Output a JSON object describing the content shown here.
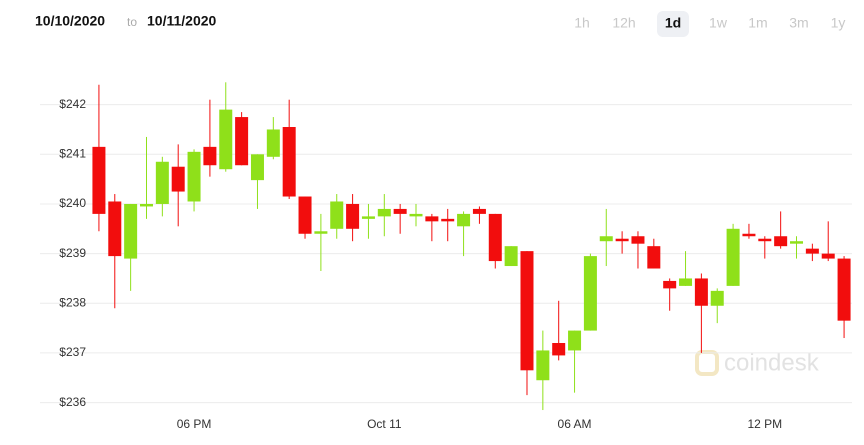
{
  "header": {
    "date_from": "10/10/2020",
    "to": "to",
    "date_to": "10/11/2020"
  },
  "range_buttons": [
    {
      "label": "1h",
      "selected": false
    },
    {
      "label": "12h",
      "selected": false
    },
    {
      "label": "1d",
      "selected": true
    },
    {
      "label": "1w",
      "selected": false
    },
    {
      "label": "1m",
      "selected": false
    },
    {
      "label": "3m",
      "selected": false
    },
    {
      "label": "1y",
      "selected": false
    }
  ],
  "watermark": "coindesk",
  "chart_data": {
    "type": "candlestick",
    "categories": [
      null,
      null,
      null,
      null,
      null,
      null,
      "06 PM",
      null,
      null,
      null,
      null,
      null,
      null,
      null,
      null,
      null,
      null,
      null,
      "Oct 11",
      null,
      null,
      null,
      null,
      null,
      null,
      null,
      null,
      null,
      null,
      null,
      "06 AM",
      null,
      null,
      null,
      null,
      null,
      null,
      null,
      null,
      null,
      null,
      null,
      "12 PM",
      null,
      null,
      null,
      null,
      null
    ],
    "open": [
      241.15,
      240.05,
      238.9,
      239.95,
      240.0,
      240.75,
      240.05,
      241.15,
      240.7,
      241.75,
      240.48,
      240.95,
      241.55,
      240.15,
      239.4,
      239.5,
      240.0,
      239.7,
      239.75,
      239.9,
      239.75,
      239.75,
      239.7,
      239.55,
      239.9,
      239.8,
      238.75,
      239.05,
      236.45,
      237.2,
      237.05,
      237.45,
      239.25,
      239.3,
      239.35,
      239.15,
      238.45,
      238.35,
      238.5,
      237.95,
      238.35,
      239.4,
      239.3,
      239.35,
      239.2,
      239.1,
      239.0,
      238.9
    ],
    "high": [
      242.4,
      240.2,
      240.0,
      241.35,
      240.95,
      241.2,
      241.1,
      242.1,
      242.45,
      241.85,
      241.0,
      241.75,
      242.1,
      240.15,
      239.8,
      240.2,
      240.2,
      240.0,
      240.2,
      240.0,
      240.0,
      239.8,
      239.9,
      239.85,
      239.95,
      239.8,
      239.15,
      239.05,
      237.45,
      238.05,
      237.45,
      239.0,
      239.9,
      239.45,
      239.45,
      239.3,
      238.5,
      239.05,
      238.6,
      238.3,
      239.6,
      239.6,
      239.35,
      239.85,
      239.35,
      239.2,
      239.65,
      238.95
    ],
    "low": [
      239.45,
      237.9,
      238.25,
      239.7,
      239.75,
      239.55,
      239.85,
      240.55,
      240.65,
      240.78,
      239.9,
      240.9,
      240.1,
      239.3,
      238.65,
      239.3,
      239.25,
      239.3,
      239.35,
      239.4,
      239.55,
      239.25,
      239.25,
      238.95,
      239.6,
      238.7,
      238.75,
      236.15,
      235.85,
      236.85,
      236.2,
      237.45,
      238.75,
      239.0,
      238.7,
      238.7,
      237.85,
      238.35,
      237.0,
      237.6,
      238.35,
      239.3,
      238.9,
      239.1,
      238.9,
      238.85,
      238.85,
      237.3
    ],
    "close": [
      239.8,
      238.95,
      240.0,
      240.0,
      240.85,
      240.25,
      241.05,
      240.78,
      241.9,
      240.78,
      241.0,
      241.5,
      240.15,
      239.4,
      239.45,
      240.05,
      239.5,
      239.75,
      239.9,
      239.8,
      239.8,
      239.65,
      239.65,
      239.8,
      239.8,
      238.85,
      239.15,
      236.65,
      237.05,
      236.95,
      237.45,
      238.95,
      239.35,
      239.25,
      239.2,
      238.7,
      238.3,
      238.5,
      237.95,
      238.25,
      239.5,
      239.35,
      239.25,
      239.15,
      239.25,
      239.0,
      238.9,
      237.65
    ],
    "up_color": "#8fe01a",
    "down_color": "#f20d0d",
    "ylim": [
      235.75,
      243
    ],
    "yticks": [
      {
        "value": 236,
        "label": "$236"
      },
      {
        "value": 237,
        "label": "$237"
      },
      {
        "value": 238,
        "label": "$238"
      },
      {
        "value": 239,
        "label": "$239"
      },
      {
        "value": 240,
        "label": "$240"
      },
      {
        "value": 241,
        "label": "$241"
      },
      {
        "value": 242,
        "label": "$242"
      }
    ],
    "grid": true
  }
}
